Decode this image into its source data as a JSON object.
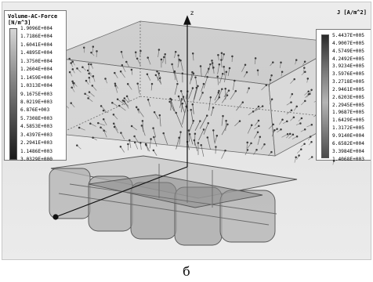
{
  "caption": "б",
  "axis_label": "z",
  "legend_left": {
    "title": "Volume-AC-Force\n[N/m^3]",
    "ticks": [
      "1.9096E+004",
      "1.7186E+004",
      "1.6041E+004",
      "1.4895E+004",
      "1.3750E+004",
      "1.2604E+004",
      "1.1459E+004",
      "1.0313E+004",
      "9.1675E+003",
      "8.0219E+003",
      "6.876E+003",
      "5.7308E+003",
      "4.5853E+003",
      "3.4397E+003",
      "2.2941E+003",
      "1.1486E+003",
      "3.0329E+000"
    ]
  },
  "legend_right": {
    "title": "J [A/m^2]",
    "ticks": [
      "5.4437E+005",
      "4.9007E+005",
      "4.5749E+005",
      "4.2492E+005",
      "3.9234E+005",
      "3.5976E+005",
      "3.2718E+005",
      "2.9461E+005",
      "2.6203E+005",
      "2.2945E+005",
      "1.9687E+005",
      "1.6429E+005",
      "1.3172E+005",
      "9.9140E+004",
      "6.6582E+004",
      "3.3984E+004",
      "1.4068E+003"
    ]
  },
  "colors": {
    "background": "#e8e8e8",
    "box_edge": "#6a6a6a",
    "arrows": "#3c3c3c"
  }
}
